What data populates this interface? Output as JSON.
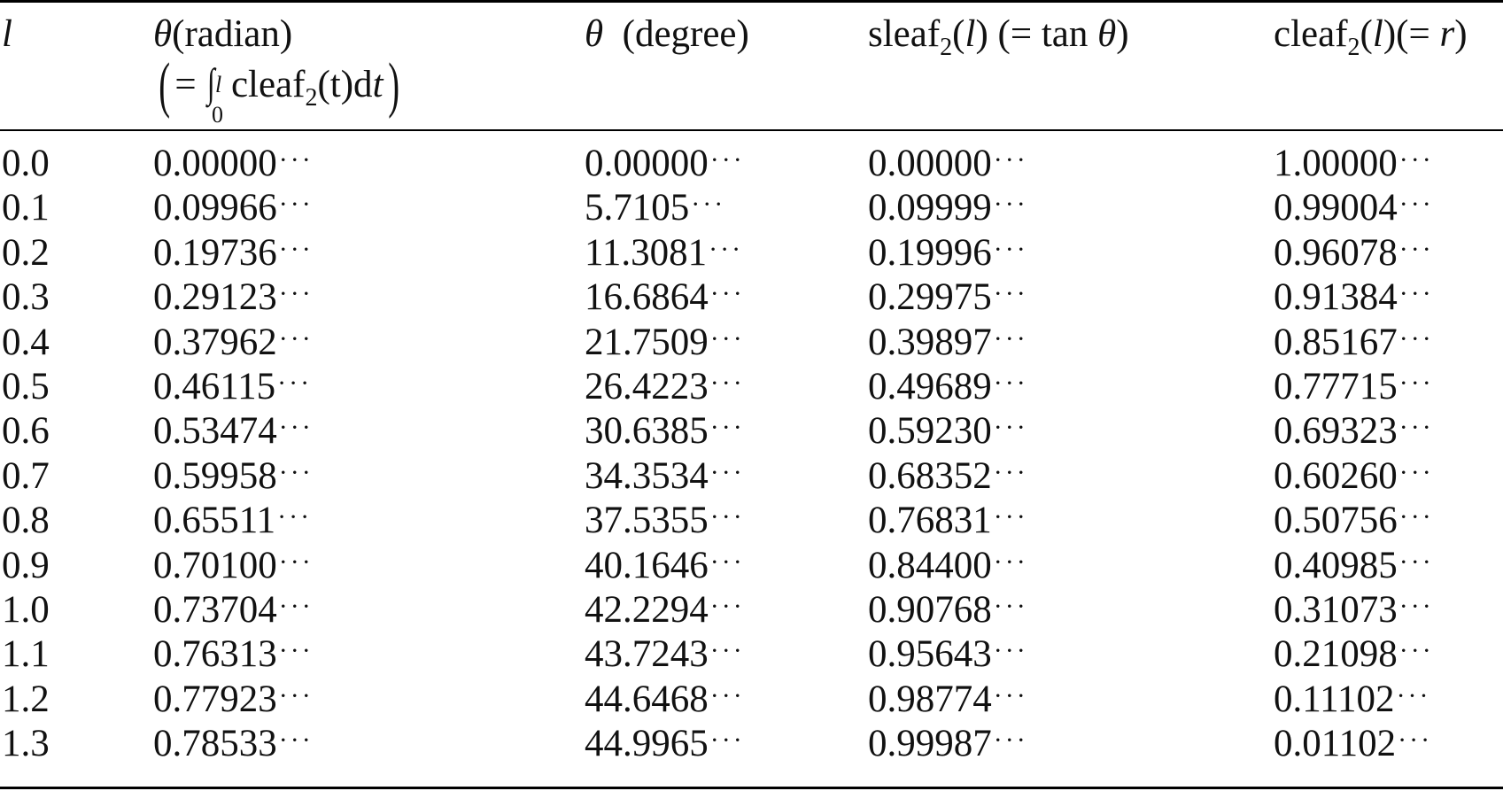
{
  "table": {
    "headers": {
      "l": "l",
      "theta_rad": {
        "symbol": "θ",
        "text": "(radian)"
      },
      "theta_rad_formula": {
        "open": "(",
        "eq": "=",
        "integral": "∫",
        "upper": "l",
        "lower": "0",
        "func": "cleaf",
        "sub": "2",
        "arg": "(t)d",
        "var": "t",
        "close": ")"
      },
      "theta_deg": {
        "symbol": "θ",
        "text": "  (degree)"
      },
      "sleaf": {
        "func": "sleaf",
        "sub": "2",
        "arg_open": "(",
        "var": "l",
        "arg_close": ")",
        "rest_pre": " (= tan ",
        "theta": "θ",
        "rest_post": ")"
      },
      "cleaf": {
        "func": "cleaf",
        "sub": "2",
        "arg_open": "(",
        "var": "l",
        "arg_close": ")(= ",
        "r": "r",
        "close": ")"
      }
    },
    "ellipsis": "···",
    "rows": [
      {
        "l": "0.0",
        "theta_rad": "0.00000",
        "theta_deg": "0.00000",
        "sleaf": "0.00000",
        "cleaf": "1.00000"
      },
      {
        "l": "0.1",
        "theta_rad": "0.09966",
        "theta_deg": "5.7105",
        "sleaf": "0.09999",
        "cleaf": "0.99004"
      },
      {
        "l": "0.2",
        "theta_rad": "0.19736",
        "theta_deg": "11.3081",
        "sleaf": "0.19996",
        "cleaf": "0.96078"
      },
      {
        "l": "0.3",
        "theta_rad": "0.29123",
        "theta_deg": "16.6864",
        "sleaf": "0.29975",
        "cleaf": "0.91384"
      },
      {
        "l": "0.4",
        "theta_rad": "0.37962",
        "theta_deg": "21.7509",
        "sleaf": "0.39897",
        "cleaf": "0.85167"
      },
      {
        "l": "0.5",
        "theta_rad": "0.46115",
        "theta_deg": "26.4223",
        "sleaf": "0.49689",
        "cleaf": "0.77715"
      },
      {
        "l": "0.6",
        "theta_rad": "0.53474",
        "theta_deg": "30.6385",
        "sleaf": "0.59230",
        "cleaf": "0.69323"
      },
      {
        "l": "0.7",
        "theta_rad": "0.59958",
        "theta_deg": "34.3534",
        "sleaf": "0.68352",
        "cleaf": "0.60260"
      },
      {
        "l": "0.8",
        "theta_rad": "0.65511",
        "theta_deg": "37.5355",
        "sleaf": "0.76831",
        "cleaf": "0.50756"
      },
      {
        "l": "0.9",
        "theta_rad": "0.70100",
        "theta_deg": "40.1646",
        "sleaf": "0.84400",
        "cleaf": "0.40985"
      },
      {
        "l": "1.0",
        "theta_rad": "0.73704",
        "theta_deg": "42.2294",
        "sleaf": "0.90768",
        "cleaf": "0.31073"
      },
      {
        "l": "1.1",
        "theta_rad": "0.76313",
        "theta_deg": "43.7243",
        "sleaf": "0.95643",
        "cleaf": "0.21098"
      },
      {
        "l": "1.2",
        "theta_rad": "0.77923",
        "theta_deg": "44.6468",
        "sleaf": "0.98774",
        "cleaf": "0.11102"
      },
      {
        "l": "1.3",
        "theta_rad": "0.78533",
        "theta_deg": "44.9965",
        "sleaf": "0.99987",
        "cleaf": "0.01102"
      }
    ]
  }
}
